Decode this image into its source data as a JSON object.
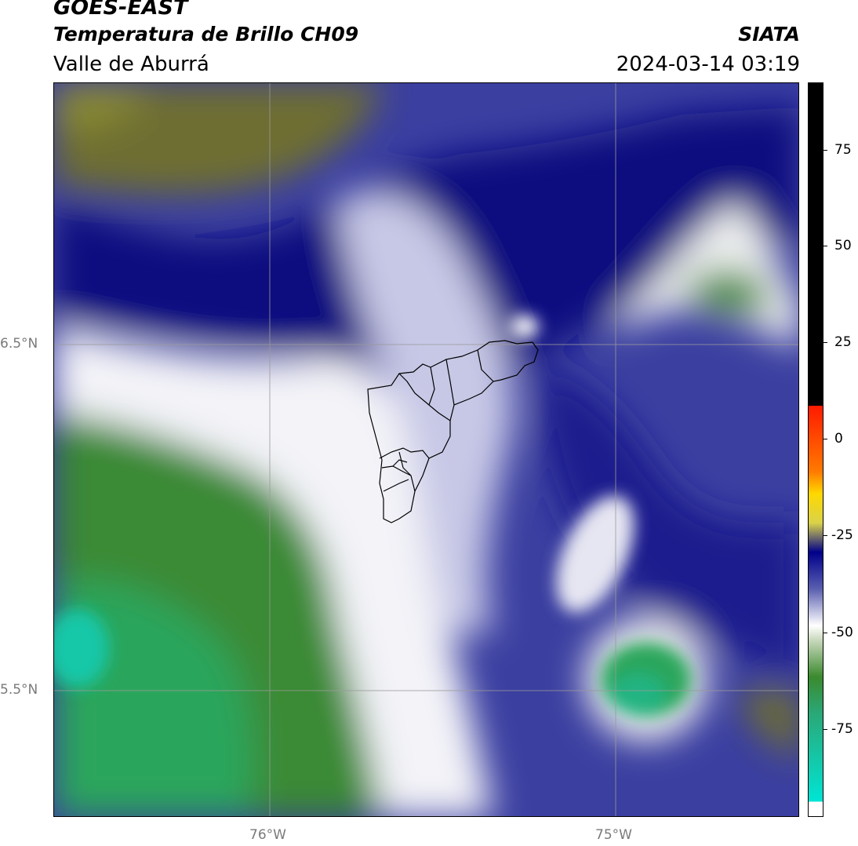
{
  "header": {
    "satellite": "GOES-EAST",
    "product": "Temperatura de Brillo CH09",
    "region": "Valle de Aburrá",
    "organization": "SIATA",
    "timestamp": "2024-03-14 03:19"
  },
  "map": {
    "lat_labels": [
      "6.5°N",
      "5.5°N"
    ],
    "lon_labels": [
      "76°W",
      "75°W"
    ],
    "graticule_color": "#9a9a9a",
    "boundary_color": "#000000"
  },
  "colorbar": {
    "tick_labels": [
      "75",
      "50",
      "25",
      "0",
      "-25",
      "-50",
      "-75"
    ],
    "ramp": [
      "#00e5d5",
      "#2aa878",
      "#3b8a2e",
      "#c8d8bc",
      "#ffffff",
      "#5a5fb0",
      "#00008a",
      "#d9d24a",
      "#ffd800",
      "#ff7a00",
      "#ff1a00",
      "#000000"
    ]
  }
}
